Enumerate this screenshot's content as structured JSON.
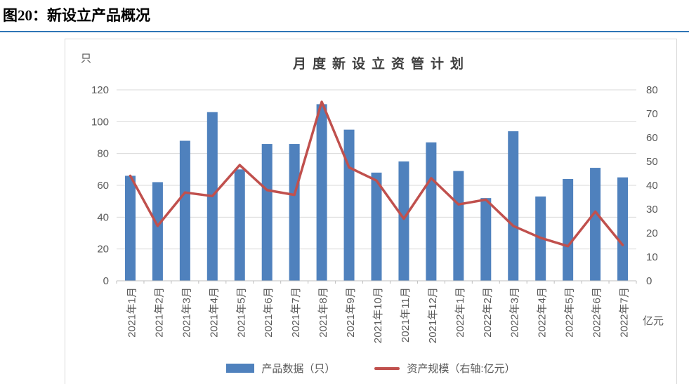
{
  "page": {
    "figure_title": "图20：新设立产品概况",
    "divider_color": "#2E75B6"
  },
  "chart_data": {
    "type": "bar",
    "subtype": "bar-line-combo",
    "title": "月度新设立资管计划",
    "categories": [
      "2021年1月",
      "2021年2月",
      "2021年3月",
      "2021年4月",
      "2021年5月",
      "2021年6月",
      "2021年7月",
      "2021年8月",
      "2021年9月",
      "2021年10月",
      "2021年11月",
      "2021年12月",
      "2022年1月",
      "2022年2月",
      "2022年3月",
      "2022年4月",
      "2022年5月",
      "2022年6月",
      "2022年7月"
    ],
    "left_axis": {
      "label": "只",
      "min": 0,
      "max": 120,
      "step": 20,
      "ticks": [
        0,
        20,
        40,
        60,
        80,
        100,
        120
      ]
    },
    "right_axis": {
      "label": "亿元",
      "min": 0,
      "max": 80,
      "step": 10,
      "ticks": [
        0,
        10,
        20,
        30,
        40,
        50,
        60,
        70,
        80
      ]
    },
    "series": [
      {
        "name": "产品数据（只）",
        "type": "bar",
        "axis": "left",
        "color": "#4F81BD",
        "values": [
          66,
          62,
          88,
          106,
          70,
          86,
          86,
          111,
          95,
          68,
          75,
          87,
          69,
          52,
          94,
          53,
          64,
          71,
          65
        ]
      },
      {
        "name": "资产规模（右轴:亿元）",
        "type": "line",
        "axis": "right",
        "color": "#C0504D",
        "values": [
          44,
          23,
          37,
          35.5,
          48.5,
          38,
          36,
          75,
          47.5,
          42,
          26,
          43,
          32,
          34,
          23,
          18,
          14.5,
          29,
          15
        ]
      }
    ],
    "legend_position": "bottom",
    "grid": "horizontal",
    "colors": {
      "gridline": "#D9D9D9",
      "axis": "#BFBFBF",
      "tick_text": "#595959"
    }
  }
}
